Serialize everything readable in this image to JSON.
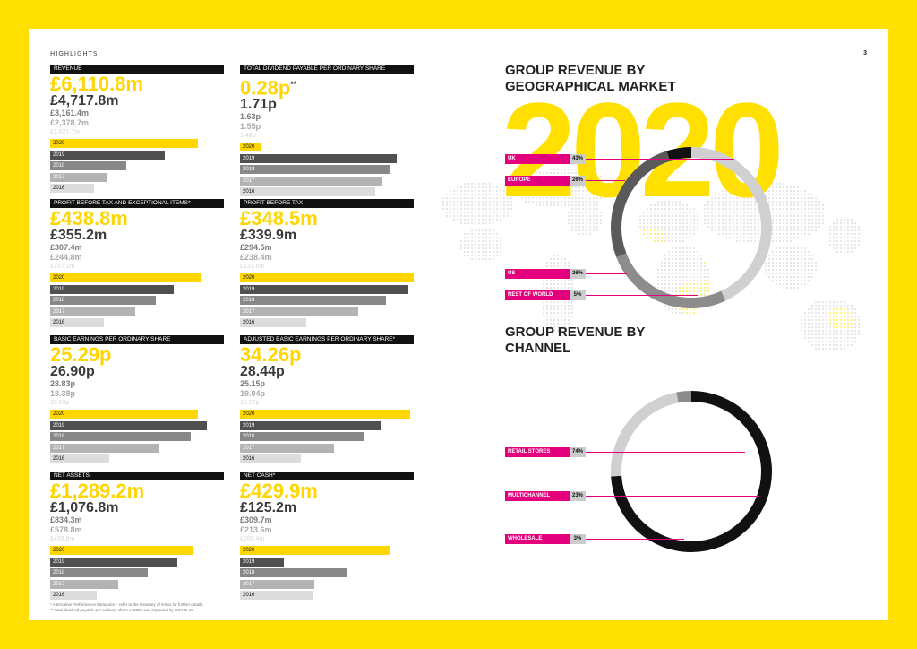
{
  "page": {
    "label": "HIGHLIGHTS",
    "number": "3"
  },
  "kpis": [
    {
      "title": "REVENUE",
      "values": [
        "£6,110.8m",
        "£4,717.8m",
        "£3,161.4m",
        "£2,378.7m",
        "£1,821.7m"
      ],
      "bar_fractions": [
        0.85,
        0.66,
        0.44,
        0.33,
        0.25
      ]
    },
    {
      "title": "TOTAL DIVIDEND PAYABLE PER ORDINARY SHARE",
      "values": [
        "0.28p",
        "1.71p",
        "1.63p",
        "1.55p",
        "1.48p"
      ],
      "superscript": "**",
      "bar_fractions": [
        0.06,
        0.9,
        0.86,
        0.82,
        0.78
      ]
    },
    {
      "title": "PROFIT BEFORE TAX AND EXCEPTIONAL ITEMS*",
      "values": [
        "£438.8m",
        "£355.2m",
        "£307.4m",
        "£244.8m",
        "£157.1m"
      ],
      "bar_fractions": [
        0.87,
        0.71,
        0.61,
        0.49,
        0.31
      ]
    },
    {
      "title": "PROFIT BEFORE TAX",
      "values": [
        "£348.5m",
        "£339.9m",
        "£294.5m",
        "£238.4m",
        "£131.6m"
      ],
      "bar_fractions": [
        1.0,
        0.97,
        0.84,
        0.68,
        0.38
      ]
    },
    {
      "title": "BASIC EARNINGS PER ORDINARY SHARE",
      "values": [
        "25.29p",
        "26.90p",
        "28.83p",
        "18.38p",
        "10.03p"
      ],
      "bar_fractions": [
        0.85,
        0.9,
        0.81,
        0.63,
        0.34
      ]
    },
    {
      "title": "ADJUSTED BASIC EARNINGS PER ORDINARY SHARE*",
      "values": [
        "34.26p",
        "28.44p",
        "25.15p",
        "19.04p",
        "12.27p"
      ],
      "bar_fractions": [
        0.98,
        0.81,
        0.71,
        0.54,
        0.35
      ]
    },
    {
      "title": "NET ASSETS",
      "values": [
        "£1,289.2m",
        "£1,076.8m",
        "£834.3m",
        "£578.8m",
        "£499.8m"
      ],
      "bar_fractions": [
        0.82,
        0.73,
        0.56,
        0.39,
        0.27
      ]
    },
    {
      "title": "NET CASH*",
      "values": [
        "£429.9m",
        "£125.2m",
        "£309.7m",
        "£213.6m",
        "£209.4m"
      ],
      "bar_fractions": [
        0.86,
        0.25,
        0.62,
        0.43,
        0.42
      ]
    }
  ],
  "years": [
    "2020",
    "2019",
    "2018",
    "2017",
    "2016"
  ],
  "footnotes": [
    "* Alternative Performance Measures – refer to the Glossary of terms for further details.",
    "** Total dividend payable per ordinary share in 2020 was impacted by COVID-19."
  ],
  "geo": {
    "title_line1": "GROUP REVENUE BY",
    "title_line2": "GEOGRAPHICAL MARKET",
    "year": "2020",
    "segments": [
      {
        "name": "UK",
        "pct_label": "43%",
        "value": 43,
        "color": "#d0d0d0"
      },
      {
        "name": "EUROPE",
        "pct_label": "26%",
        "value": 26,
        "color": "#8c8c8c"
      },
      {
        "name": "US",
        "pct_label": "26%",
        "value": 26,
        "color": "#5a5a5a"
      },
      {
        "name": "REST OF WORLD",
        "pct_label": "5%",
        "value": 5,
        "color": "#111111"
      }
    ]
  },
  "channel": {
    "title_line1": "GROUP REVENUE BY",
    "title_line2": "CHANNEL",
    "segments": [
      {
        "name": "RETAIL STORES",
        "pct_label": "74%",
        "value": 74,
        "color": "#111111"
      },
      {
        "name": "MULTICHANNEL",
        "pct_label": "23%",
        "value": 23,
        "color": "#d0d0d0"
      },
      {
        "name": "WHOLESALE",
        "pct_label": "3%",
        "value": 3,
        "color": "#8c8c8c"
      }
    ]
  },
  "chart_data": [
    {
      "type": "bar",
      "title": "REVENUE",
      "categories": [
        "2020",
        "2019",
        "2018",
        "2017",
        "2016"
      ],
      "values": [
        6110.8,
        4717.8,
        3161.4,
        2378.7,
        1821.7
      ]
    },
    {
      "type": "bar",
      "title": "TOTAL DIVIDEND PAYABLE PER ORDINARY SHARE",
      "categories": [
        "2020",
        "2019",
        "2018",
        "2017",
        "2016"
      ],
      "values": [
        0.28,
        1.71,
        1.63,
        1.55,
        1.48
      ]
    },
    {
      "type": "bar",
      "title": "PROFIT BEFORE TAX AND EXCEPTIONAL ITEMS*",
      "categories": [
        "2020",
        "2019",
        "2018",
        "2017",
        "2016"
      ],
      "values": [
        438.8,
        355.2,
        307.4,
        244.8,
        157.1
      ]
    },
    {
      "type": "bar",
      "title": "PROFIT BEFORE TAX",
      "categories": [
        "2020",
        "2019",
        "2018",
        "2017",
        "2016"
      ],
      "values": [
        348.5,
        339.9,
        294.5,
        238.4,
        131.6
      ]
    },
    {
      "type": "bar",
      "title": "BASIC EARNINGS PER ORDINARY SHARE",
      "categories": [
        "2020",
        "2019",
        "2018",
        "2017",
        "2016"
      ],
      "values": [
        25.29,
        26.9,
        28.83,
        18.38,
        10.03
      ]
    },
    {
      "type": "bar",
      "title": "ADJUSTED BASIC EARNINGS PER ORDINARY SHARE*",
      "categories": [
        "2020",
        "2019",
        "2018",
        "2017",
        "2016"
      ],
      "values": [
        34.26,
        28.44,
        25.15,
        19.04,
        12.27
      ]
    },
    {
      "type": "bar",
      "title": "NET ASSETS",
      "categories": [
        "2020",
        "2019",
        "2018",
        "2017",
        "2016"
      ],
      "values": [
        1289.2,
        1076.8,
        834.3,
        578.8,
        499.8
      ]
    },
    {
      "type": "bar",
      "title": "NET CASH*",
      "categories": [
        "2020",
        "2019",
        "2018",
        "2017",
        "2016"
      ],
      "values": [
        429.9,
        125.2,
        309.7,
        213.6,
        209.4
      ]
    },
    {
      "type": "pie",
      "title": "GROUP REVENUE BY GEOGRAPHICAL MARKET",
      "categories": [
        "UK",
        "EUROPE",
        "US",
        "REST OF WORLD"
      ],
      "values": [
        43,
        26,
        26,
        5
      ]
    },
    {
      "type": "pie",
      "title": "GROUP REVENUE BY CHANNEL",
      "categories": [
        "RETAIL STORES",
        "MULTICHANNEL",
        "WHOLESALE"
      ],
      "values": [
        74,
        23,
        3
      ]
    }
  ]
}
